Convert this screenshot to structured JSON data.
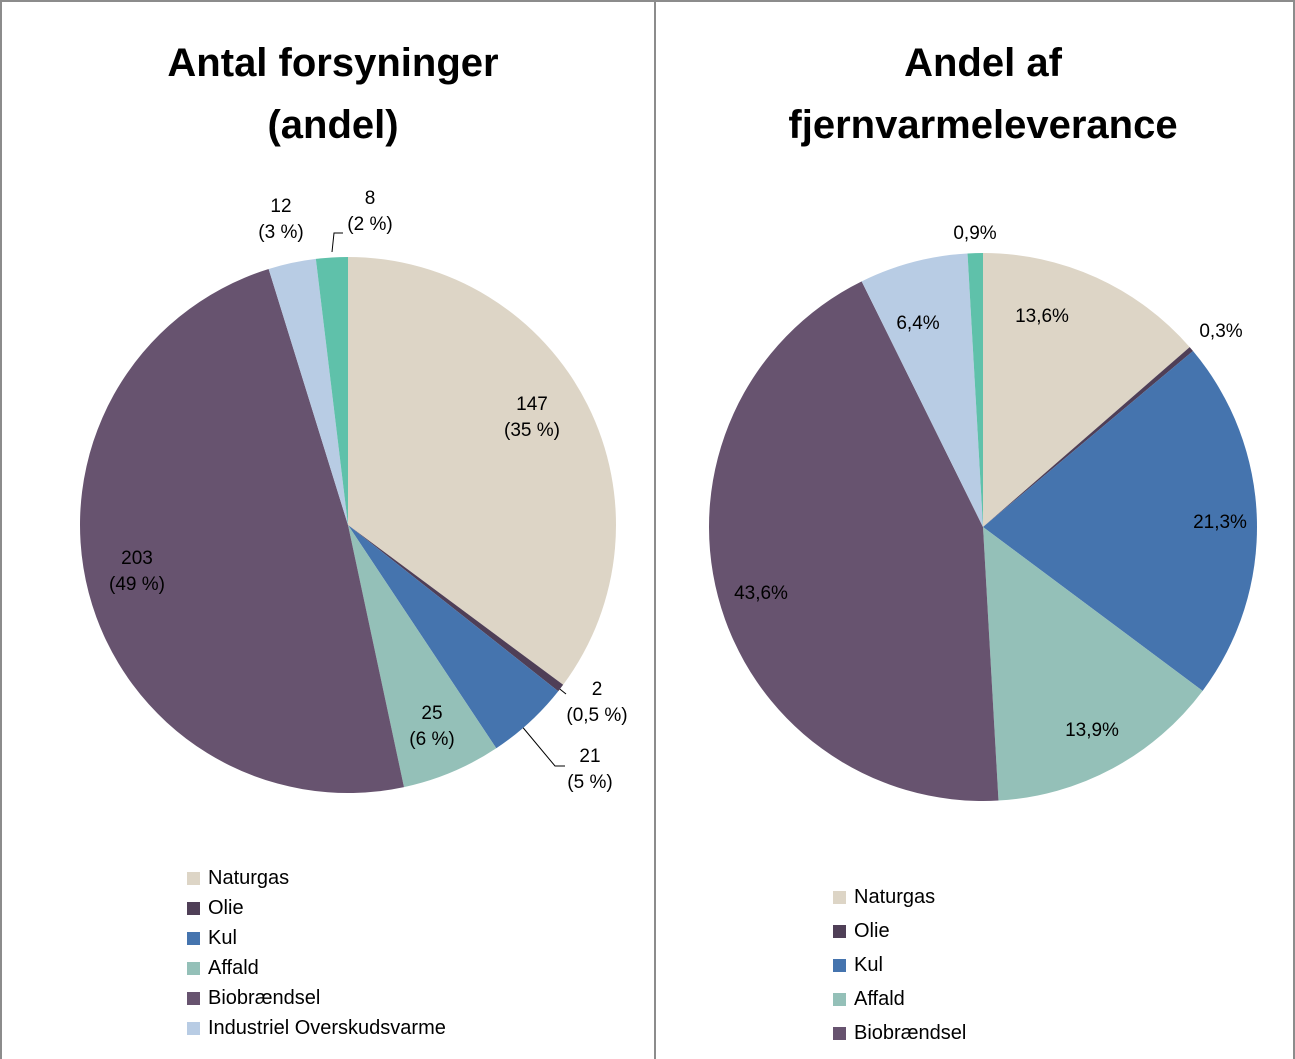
{
  "chart_data": [
    {
      "type": "pie",
      "title": "Antal forsyninger\n(andel)",
      "categories": [
        "Naturgas",
        "Olie",
        "Kul",
        "Affald",
        "Biobrændsel",
        "Industriel Overskudsvarme",
        null
      ],
      "values": [
        147,
        2,
        21,
        25,
        203,
        12,
        8
      ],
      "value_labels": [
        "147\n(35 %)",
        "2\n(0,5 %)",
        "21\n(5 %)",
        "25\n(6 %)",
        "203\n(49 %)",
        "12\n(3 %)",
        "8\n(2 %)"
      ],
      "colors": [
        "#ddd5c6",
        "#4f3f57",
        "#4574ae",
        "#94c0b8",
        "#67536f",
        "#b8cce4",
        "#5fc1aa"
      ]
    },
    {
      "type": "pie",
      "title": "Andel af\nfjernvarmeleverance",
      "categories": [
        "Naturgas",
        "Olie",
        "Kul",
        "Affald",
        "Biobrændsel",
        null,
        null
      ],
      "values": [
        13.6,
        0.3,
        21.3,
        13.9,
        43.6,
        6.4,
        0.9
      ],
      "value_labels": [
        "13,6%",
        "0,3%",
        "21,3%",
        "13,9%",
        "43,6%",
        "6,4%",
        "0,9%"
      ],
      "colors": [
        "#ddd5c6",
        "#4f3f57",
        "#4574ae",
        "#94c0b8",
        "#67536f",
        "#b8cce4",
        "#5fc1aa"
      ]
    }
  ]
}
